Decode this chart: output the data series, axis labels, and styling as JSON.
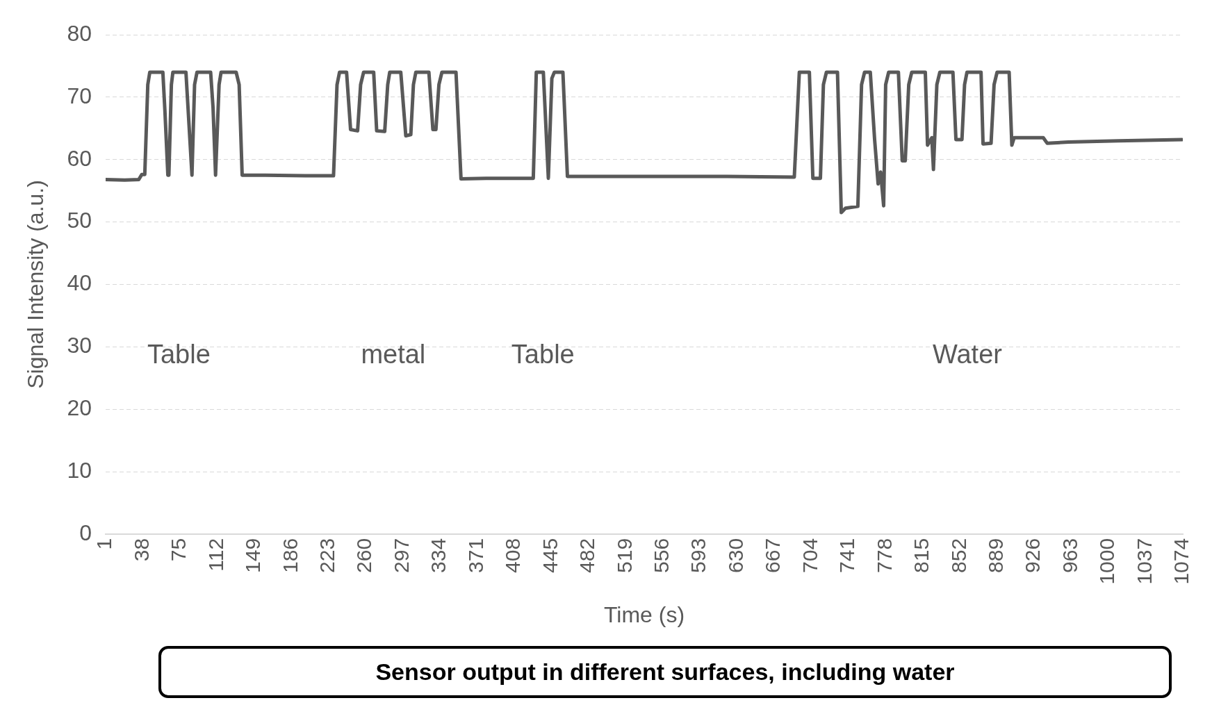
{
  "chart_data": {
    "type": "line",
    "xlabel": "Time (s)",
    "ylabel": "Signal Intensity (a.u.)",
    "x": [
      1,
      20,
      34,
      37,
      40,
      43,
      45,
      58,
      60,
      63,
      64,
      66.5,
      68,
      81,
      87,
      89.6,
      92,
      105.6,
      108,
      110.5,
      114,
      116,
      131,
      134,
      137,
      160,
      200,
      228,
      231.5,
      234,
      241,
      245,
      252,
      255,
      258,
      268,
      271,
      279,
      282,
      284,
      295,
      300,
      305,
      307.6,
      310,
      323,
      327,
      330,
      333,
      336,
      350,
      355,
      380,
      427,
      430,
      437,
      442,
      445.5,
      448,
      456.5,
      461,
      500,
      560,
      620,
      687,
      692,
      695,
      702,
      705.5,
      713,
      716,
      719,
      730,
      733.8,
      738,
      750.3,
      754,
      757,
      762.7,
      767,
      770.5,
      773,
      776,
      778,
      781,
      790.7,
      794.5,
      797.5,
      801,
      804,
      817.5,
      819.7,
      824,
      825.6,
      829,
      832,
      845,
      848,
      854,
      856.6,
      859,
      873,
      875,
      883,
      886,
      889,
      901,
      903.7,
      906,
      935,
      939,
      960,
      1010,
      1073
    ],
    "series": [
      {
        "color": "#595959",
        "values": [
          56.8,
          56.7,
          56.8,
          57.6,
          57.6,
          72,
          74,
          74,
          68,
          57.5,
          57.5,
          72,
          74,
          74,
          57.5,
          72,
          74,
          74,
          68.3,
          57.5,
          72,
          74,
          74,
          72,
          57.5,
          57.5,
          57.4,
          57.4,
          72,
          74,
          74,
          64.8,
          64.6,
          72,
          74,
          74,
          64.6,
          64.5,
          72,
          74,
          74,
          63.8,
          64,
          72,
          74,
          74,
          64.8,
          64.8,
          72,
          74,
          74,
          56.9,
          57,
          57,
          74,
          74,
          57,
          73,
          74,
          74,
          57.3,
          57.3,
          57.3,
          57.3,
          57.2,
          74,
          74,
          74,
          57,
          57,
          72,
          74,
          74,
          51.5,
          52.2,
          52.5,
          72,
          74,
          74,
          63.2,
          56.1,
          58,
          52.6,
          72,
          74,
          74,
          59.8,
          59.8,
          72,
          74,
          74,
          62.3,
          63.5,
          58.4,
          72,
          74,
          74,
          63.2,
          63.2,
          72,
          74,
          74,
          62.5,
          62.6,
          72,
          74,
          74,
          62.3,
          63.5,
          63.5,
          62.6,
          62.8,
          63,
          63.2
        ]
      }
    ],
    "xlim": [
      1,
      1074
    ],
    "xticks": [
      1,
      38,
      75,
      112,
      149,
      186,
      223,
      260,
      297,
      334,
      371,
      408,
      445,
      482,
      519,
      556,
      593,
      630,
      667,
      704,
      741,
      778,
      815,
      852,
      889,
      926,
      963,
      1000,
      1037,
      1074
    ],
    "ylim": [
      0,
      80
    ],
    "yticks": [
      0,
      10,
      20,
      30,
      40,
      50,
      60,
      70,
      80
    ],
    "grid": "y",
    "annotations": [
      "Table",
      "metal",
      "Table",
      "Water",
      "Sensor output in different surfaces, including water"
    ]
  }
}
